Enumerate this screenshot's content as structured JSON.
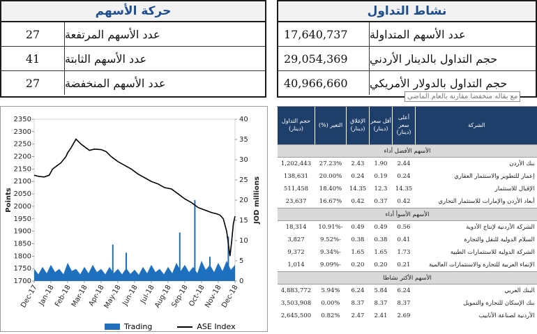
{
  "movement": {
    "title": "حركة الأسهم",
    "rows": [
      {
        "label": "عدد الأسهم المرتفعة",
        "value": "27"
      },
      {
        "label": "عدد الأسهم الثابتة",
        "value": "41"
      },
      {
        "label": "عدد الأسهم المنخفضة",
        "value": "27"
      }
    ]
  },
  "activity": {
    "title": "نشاط التداول",
    "rows": [
      {
        "label": "عدد الأسهم المتداولة",
        "value": "17,640,737"
      },
      {
        "label": "حجم التداول بالدينار الأردني",
        "value": "29,054,369"
      },
      {
        "label": "حجم التداول بالدولار الأمريكي",
        "value": "40,966,660"
      }
    ],
    "tooltip": "مع بقاله منخفضا مقارنة بالعام الماضي"
  },
  "chart_data": {
    "type": "line",
    "x": [
      "Dec-17",
      "Jan-18",
      "Feb-18",
      "Mar-18",
      "Apr-18",
      "May-18",
      "Jun-18",
      "Jul-18",
      "Aug-18",
      "Sep-18",
      "Oct-18",
      "Nov-18",
      "Dec-18"
    ],
    "ylabel": "Points",
    "y2label": "JOD millions",
    "ylim": [
      1700,
      2350
    ],
    "y2lim": [
      0,
      40
    ],
    "yticks": [
      "2350",
      "2300",
      "2250",
      "2200",
      "2150",
      "2100",
      "2050",
      "2000",
      "1950",
      "1900",
      "1850",
      "1800",
      "1750",
      "1700"
    ],
    "y2ticks": [
      "40",
      "35",
      "30",
      "25",
      "20",
      "15",
      "10",
      "5",
      "0"
    ],
    "series": [
      {
        "name": "ASE Index",
        "type": "line",
        "color": "#000000",
        "x": [
          0,
          0.3,
          0.6,
          0.9,
          1.1,
          1.3,
          1.6,
          1.9,
          2.0,
          2.2,
          2.5,
          2.8,
          3.1,
          3.3,
          3.6,
          4.0,
          4.3,
          4.6,
          5.0,
          5.4,
          5.8,
          6.2,
          6.6,
          7.0,
          7.4,
          7.8,
          8.2,
          8.6,
          9.0,
          9.4,
          9.8,
          10.2,
          10.6,
          10.9,
          11.1,
          11.3,
          11.5,
          11.6,
          11.7,
          11.8,
          11.9,
          12.0
        ],
        "values": [
          2125,
          2120,
          2118,
          2125,
          2150,
          2160,
          2175,
          2200,
          2215,
          2235,
          2270,
          2250,
          2235,
          2225,
          2230,
          2228,
          2220,
          2200,
          2180,
          2165,
          2150,
          2130,
          2115,
          2100,
          2090,
          2075,
          2070,
          2050,
          2030,
          2015,
          1995,
          1985,
          1975,
          1970,
          1965,
          1950,
          1900,
          1850,
          1800,
          1860,
          1930,
          1960
        ]
      },
      {
        "name": "Trading",
        "type": "area",
        "color": "#1f6fbf",
        "x": [
          0,
          0.5,
          1,
          1.5,
          2,
          2.5,
          3,
          3.5,
          4,
          4.5,
          5,
          5.5,
          6,
          6.5,
          7,
          7.5,
          8,
          8.5,
          9,
          9.5,
          10,
          10.5,
          11,
          11.5,
          12
        ],
        "values": [
          3,
          3.5,
          4,
          3,
          4.5,
          3,
          3.5,
          4,
          3,
          3.5,
          3,
          3.2,
          2.8,
          3.5,
          4,
          3,
          3.5,
          4.5,
          4,
          3.5,
          5,
          4,
          4.5,
          5,
          4
        ],
        "spikes": [
          {
            "x": 4.7,
            "value": 9
          },
          {
            "x": 5.5,
            "value": 7
          },
          {
            "x": 8.7,
            "value": 12
          },
          {
            "x": 9.6,
            "value": 20
          },
          {
            "x": 10.5,
            "value": 6
          },
          {
            "x": 11.6,
            "value": 11
          }
        ]
      }
    ],
    "legend": [
      "Trading",
      "ASE Index"
    ]
  },
  "rank": {
    "columns": [
      "الشركة",
      "أعلى سعر (دينار)",
      "أقل سعر (دينار)",
      "الإغلاق (دينار)",
      "التغير (%)",
      "حجم التداول (دينار)"
    ],
    "sections": [
      {
        "title": "الأسهم الأفضل أداء",
        "rows": [
          [
            "بنك الأردن",
            "2.44",
            "1.90",
            "2.43",
            "27.23%",
            "1,202,443"
          ],
          [
            "إعمار للتطوير والاستثمار العقاري",
            "0.24",
            "0.19",
            "0.24",
            "20.00%",
            "138,631"
          ],
          [
            "الإقبال للاستثمار",
            "14.35",
            "12.3",
            "14.35",
            "18.40%",
            "511,458"
          ],
          [
            "أبعاد الأردن والإمارات للاستثمار التجاري",
            "0.42",
            "0.37",
            "0.42",
            "16.67%",
            "23,637"
          ]
        ]
      },
      {
        "title": "الأسهم الأسوأ أداء",
        "rows": [
          [
            "الشركة الأردنية لإنتاج الأدوية",
            "0.56",
            "0.49",
            "0.49",
            "-10.91%",
            "18,314"
          ],
          [
            "السلام الدولية للنقل والتجارة",
            "0.41",
            "0.38",
            "0.38",
            "-9.52%",
            "3,827"
          ],
          [
            "الشركة الدولية للاستثمارات الطبية",
            "1.73",
            "1.65",
            "1.65",
            "-9.34%",
            "9,372"
          ],
          [
            "الإنماء العربية للتجارة والاستثمارات العالمية",
            "0.21",
            "0.20",
            "0.20",
            "-9.09%",
            "1,014"
          ]
        ]
      },
      {
        "title": "الأسهم الأكثر نشاطا",
        "rows": [
          [
            "البنك العربي",
            "6.24",
            "5.84",
            "6.24",
            "5.94%",
            "4,883,772"
          ],
          [
            "بنك الإسكان للتجارة والتمويل",
            "8.37",
            "8.37",
            "8.37",
            "0.00%",
            "3,503,908"
          ],
          [
            "الأردنية لصناعة الأنابيب",
            "2.69",
            "2.41",
            "2.47",
            "0.82%",
            "2,645,500"
          ]
        ]
      }
    ]
  }
}
